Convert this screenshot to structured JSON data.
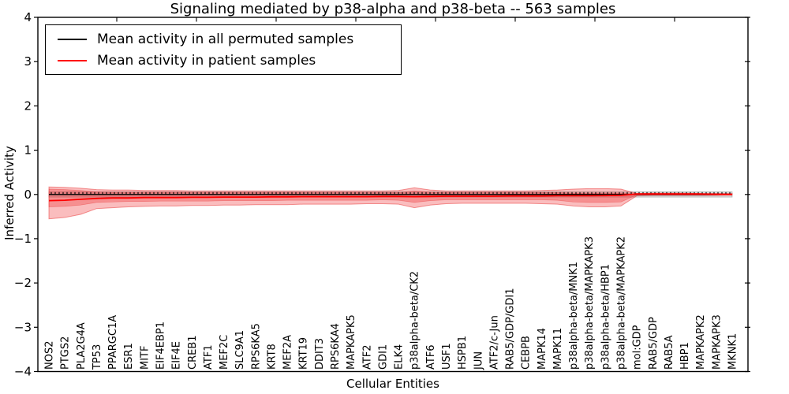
{
  "chart_data": {
    "type": "line",
    "title": "Signaling mediated by p38-alpha and p38-beta -- 563 samples",
    "xlabel": "Cellular Entities",
    "ylabel": "Inferred Activity",
    "ylim": [
      -4,
      4
    ],
    "yticks": [
      4,
      3,
      2,
      1,
      0,
      -1,
      -2,
      -3,
      -4
    ],
    "grid": false,
    "legend_position": "upper-left",
    "categories": [
      "NOS2",
      "PTGS2",
      "PLA2G4A",
      "TP53",
      "PPARGC1A",
      "ESR1",
      "MITF",
      "EIF4EBP1",
      "EIF4E",
      "CREB1",
      "ATF1",
      "MEF2C",
      "SLC9A1",
      "RPS6KA5",
      "KRT8",
      "MEF2A",
      "KRT19",
      "DDIT3",
      "RPS6KA4",
      "MAPKAPK5",
      "ATF2",
      "GDI1",
      "ELK4",
      "p38alpha-beta/CK2",
      "ATF6",
      "USF1",
      "HSPB1",
      "JUN",
      "ATF2/c-Jun",
      "RAB5/GDP/GDI1",
      "CEBPB",
      "MAPK14",
      "MAPK11",
      "p38alpha-beta/MNK1",
      "p38alpha-beta/MAPKAPK3",
      "p38alpha-beta/HBP1",
      "p38alpha-beta/MAPKAPK2",
      "mol:GDP",
      "RAB5/GDP",
      "RAB5A",
      "HBP1",
      "MAPKAPK2",
      "MAPKAPK3",
      "MKNK1"
    ],
    "series": [
      {
        "name": "Mean activity in all permuted samples",
        "color": "#000000",
        "style": "solid-line-with-small-tick-markers",
        "values_constant": 0.0
      },
      {
        "name": "Mean activity in patient samples",
        "color": "#ff0000",
        "style": "solid",
        "values": [
          -0.14,
          -0.13,
          -0.11,
          -0.09,
          -0.08,
          -0.08,
          -0.07,
          -0.07,
          -0.07,
          -0.065,
          -0.065,
          -0.06,
          -0.06,
          -0.06,
          -0.055,
          -0.055,
          -0.05,
          -0.05,
          -0.05,
          -0.05,
          -0.05,
          -0.045,
          -0.045,
          -0.05,
          -0.045,
          -0.04,
          -0.04,
          -0.04,
          -0.04,
          -0.035,
          -0.035,
          -0.035,
          -0.03,
          -0.03,
          -0.03,
          -0.025,
          -0.02,
          0.01,
          0.01,
          0.01,
          0.01,
          0.01,
          0.005,
          0.0
        ]
      }
    ],
    "bands": {
      "permuted_std": {
        "top_constant": 0.06,
        "bottom_constant": -0.06,
        "fill": "rgba(120,120,120,0.28)",
        "edge": "rgba(110,110,110,0.45)"
      },
      "patient_outer": {
        "fill": "rgba(240,35,40,0.30)",
        "edge": "rgba(230,30,30,0.45)",
        "top": [
          0.17,
          0.16,
          0.14,
          0.11,
          0.1,
          0.1,
          0.09,
          0.09,
          0.09,
          0.08,
          0.08,
          0.08,
          0.08,
          0.08,
          0.08,
          0.08,
          0.08,
          0.08,
          0.08,
          0.08,
          0.08,
          0.08,
          0.09,
          0.15,
          0.1,
          0.08,
          0.08,
          0.08,
          0.08,
          0.08,
          0.08,
          0.09,
          0.1,
          0.12,
          0.13,
          0.13,
          0.12,
          0.02,
          0.03,
          0.03,
          0.03,
          0.02,
          0.02,
          0.02
        ],
        "bottom": [
          -0.55,
          -0.52,
          -0.45,
          -0.32,
          -0.3,
          -0.28,
          -0.27,
          -0.26,
          -0.26,
          -0.25,
          -0.25,
          -0.24,
          -0.24,
          -0.23,
          -0.23,
          -0.23,
          -0.22,
          -0.22,
          -0.22,
          -0.22,
          -0.21,
          -0.21,
          -0.22,
          -0.3,
          -0.24,
          -0.21,
          -0.2,
          -0.2,
          -0.2,
          -0.2,
          -0.2,
          -0.21,
          -0.22,
          -0.26,
          -0.28,
          -0.28,
          -0.26,
          -0.03,
          -0.02,
          -0.02,
          -0.02,
          -0.02,
          -0.02,
          -0.01
        ]
      },
      "patient_inner": {
        "fill": "rgba(240,35,40,0.30)",
        "edge": "rgba(230,30,30,0.35)",
        "top": [
          0.12,
          0.11,
          0.09,
          0.06,
          0.05,
          0.05,
          0.05,
          0.05,
          0.05,
          0.04,
          0.04,
          0.04,
          0.04,
          0.04,
          0.04,
          0.04,
          0.04,
          0.04,
          0.04,
          0.04,
          0.04,
          0.04,
          0.04,
          0.08,
          0.05,
          0.04,
          0.04,
          0.04,
          0.04,
          0.04,
          0.04,
          0.04,
          0.04,
          0.03,
          0.03,
          0.03,
          0.03,
          0.01,
          0.01,
          0.01,
          0.01,
          0.01,
          0.01,
          0.01
        ],
        "bottom": [
          -0.28,
          -0.27,
          -0.24,
          -0.18,
          -0.17,
          -0.16,
          -0.16,
          -0.15,
          -0.15,
          -0.15,
          -0.15,
          -0.14,
          -0.14,
          -0.14,
          -0.14,
          -0.13,
          -0.13,
          -0.13,
          -0.13,
          -0.13,
          -0.13,
          -0.12,
          -0.13,
          -0.18,
          -0.14,
          -0.12,
          -0.12,
          -0.12,
          -0.12,
          -0.12,
          -0.12,
          -0.12,
          -0.13,
          -0.17,
          -0.18,
          -0.18,
          -0.17,
          -0.01,
          -0.01,
          -0.01,
          -0.01,
          -0.01,
          -0.01,
          -0.01
        ]
      }
    },
    "colors": {
      "permuted_line": "#000000",
      "patient_line": "#ff0000",
      "frame": "#000000"
    }
  }
}
